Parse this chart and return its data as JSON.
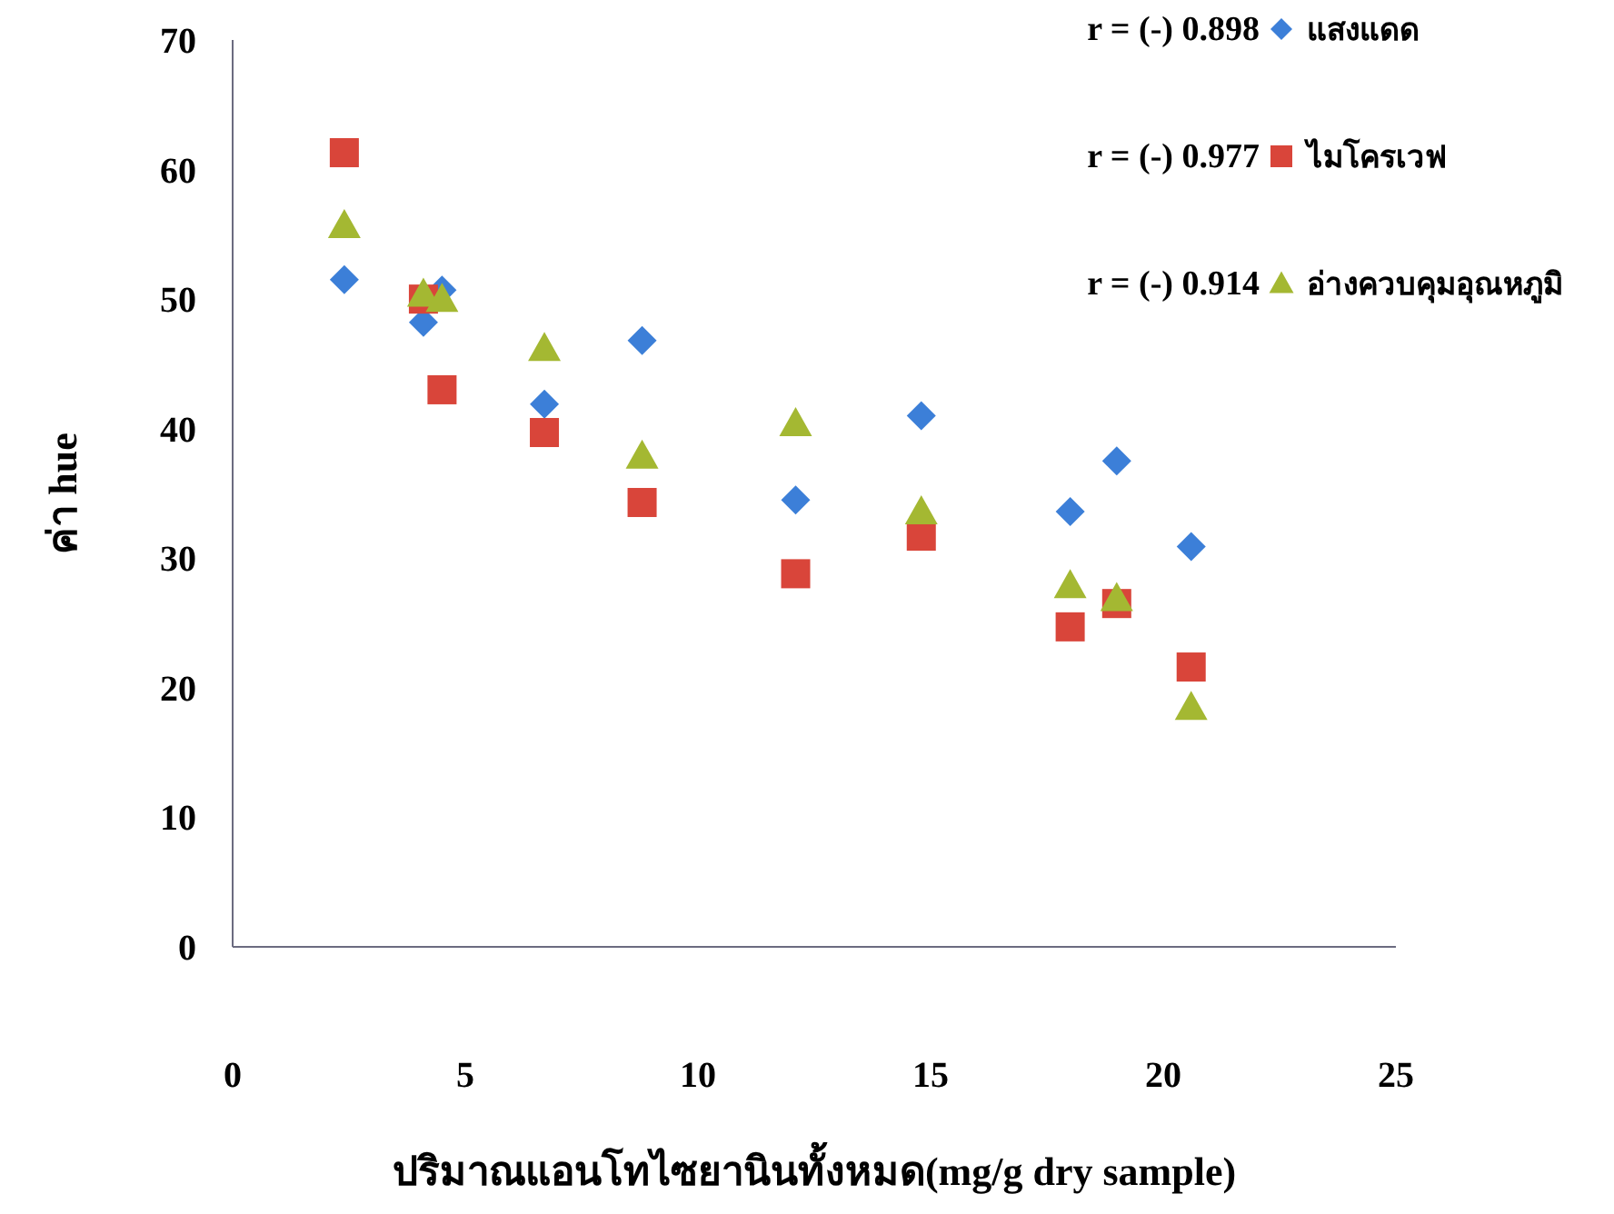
{
  "chart_data": {
    "type": "scatter",
    "xlabel": "ปริมาณแอนโทไซยานินทั้งหมด(mg/g dry sample)",
    "ylabel": "ค่า hue",
    "xlim": [
      0,
      25
    ],
    "xticks": [
      0,
      5,
      10,
      15,
      20,
      25
    ],
    "ylim": [
      0,
      70
    ],
    "yticks": [
      0,
      10,
      20,
      30,
      40,
      50,
      60,
      70
    ],
    "grid": false,
    "legend": "top right",
    "annotations": [
      "r = (-) 0.898",
      "r = (-) 0.977",
      "r = (-) 0.914"
    ],
    "series": [
      {
        "name": "แสงแดด",
        "color": "#3c7fd8",
        "marker": "diamond",
        "x": [
          2.4,
          4.1,
          4.5,
          6.7,
          8.8,
          12.1,
          14.8,
          18.0,
          19.0,
          20.6
        ],
        "values": [
          51.5,
          48.2,
          50.7,
          41.9,
          46.8,
          34.5,
          41.0,
          33.6,
          37.5,
          30.9
        ]
      },
      {
        "name": "ไมโครเวฟ",
        "color": "#d9453a",
        "marker": "square",
        "x": [
          2.4,
          4.1,
          4.5,
          6.7,
          8.8,
          12.1,
          14.8,
          18.0,
          19.0,
          20.6
        ],
        "values": [
          61.3,
          50.0,
          43.0,
          39.7,
          34.3,
          28.8,
          31.7,
          24.7,
          26.5,
          21.6
        ]
      },
      {
        "name": "อ่างควบคุมอุณหภูมิ",
        "color": "#a4b832",
        "marker": "triangle",
        "x": [
          2.4,
          4.1,
          4.5,
          6.7,
          8.8,
          12.1,
          14.8,
          18.0,
          19.0,
          20.6
        ],
        "values": [
          55.7,
          50.4,
          50.0,
          46.2,
          37.9,
          40.4,
          33.6,
          27.9,
          26.9,
          18.5
        ]
      }
    ]
  }
}
